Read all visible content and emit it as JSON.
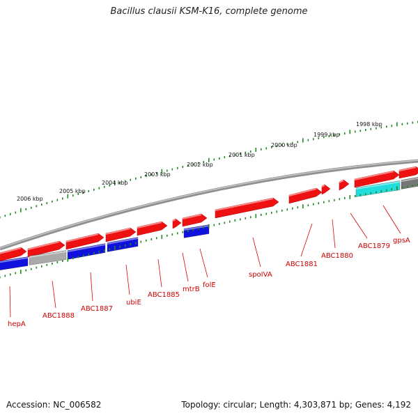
{
  "title": "Bacillus clausii KSM-K16, complete genome",
  "footer": {
    "accession": "Accession: NC_006582",
    "topology": "Topology: circular; Length: 4,303,871 bp; Genes: 4,192"
  },
  "ruler": {
    "ticks": [
      "1998 kbp",
      "1999 kbp",
      "2000 kbp",
      "2001 kbp",
      "2002 kbp",
      "2003 kbp",
      "2004 kbp",
      "2005 kbp",
      "2006 kbp"
    ]
  },
  "gene_labels": [
    "gpsA",
    "ABC1879",
    "ABC1880",
    "ABC1881",
    "spoIVA",
    "folE",
    "mtrB",
    "ABC1885",
    "ubiE",
    "ABC1887",
    "ABC1888",
    "hepA"
  ],
  "colors": {
    "forward_gene": "#ee1111",
    "reverse_gene": "#1111dd",
    "rna_gene": "#22dddd",
    "other_gene": "#aaaaaa",
    "backbone": "#808080",
    "ruler": "#228822",
    "label": "#cc0000"
  }
}
